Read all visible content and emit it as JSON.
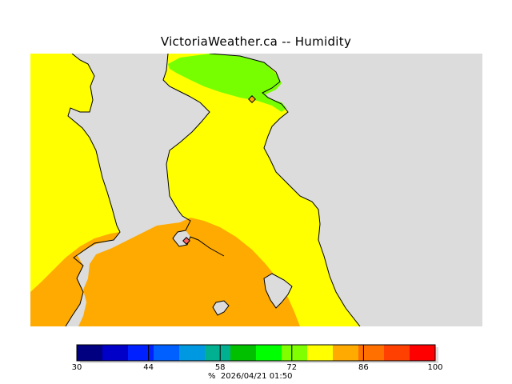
{
  "title": "VictoriaWeather.ca -- Humidity",
  "map": {
    "variable": "Humidity",
    "colors": {
      "land_yellow": "#ffff00",
      "land_orange": "#ffaa00",
      "land_green": "#77ff00",
      "water": "#dcdcdc",
      "coast": "#000000"
    },
    "markers": [
      {
        "name": "station-marker-north"
      },
      {
        "name": "station-marker-victoria"
      }
    ]
  },
  "legend": {
    "min": 30,
    "max": 100,
    "bins": [
      {
        "from": 30,
        "to": 35,
        "color": "#000080"
      },
      {
        "from": 35,
        "to": 40,
        "color": "#0000c8"
      },
      {
        "from": 40,
        "to": 45,
        "color": "#0020ff"
      },
      {
        "from": 45,
        "to": 50,
        "color": "#0060ff"
      },
      {
        "from": 50,
        "to": 55,
        "color": "#0098e0"
      },
      {
        "from": 55,
        "to": 60,
        "color": "#00b090"
      },
      {
        "from": 60,
        "to": 65,
        "color": "#00c000"
      },
      {
        "from": 65,
        "to": 70,
        "color": "#00ff00"
      },
      {
        "from": 70,
        "to": 75,
        "color": "#80ff00"
      },
      {
        "from": 75,
        "to": 80,
        "color": "#ffff00"
      },
      {
        "from": 80,
        "to": 85,
        "color": "#ffaa00"
      },
      {
        "from": 85,
        "to": 90,
        "color": "#ff7000"
      },
      {
        "from": 90,
        "to": 95,
        "color": "#ff4000"
      },
      {
        "from": 95,
        "to": 100,
        "color": "#ff0000"
      }
    ],
    "tick_labels": [
      "30",
      "44",
      "58",
      "72",
      "86",
      "100"
    ],
    "tick_values": [
      30,
      44,
      58,
      72,
      86,
      100
    ],
    "unit": "%",
    "timestamp": "2026/04/21 01:50"
  }
}
